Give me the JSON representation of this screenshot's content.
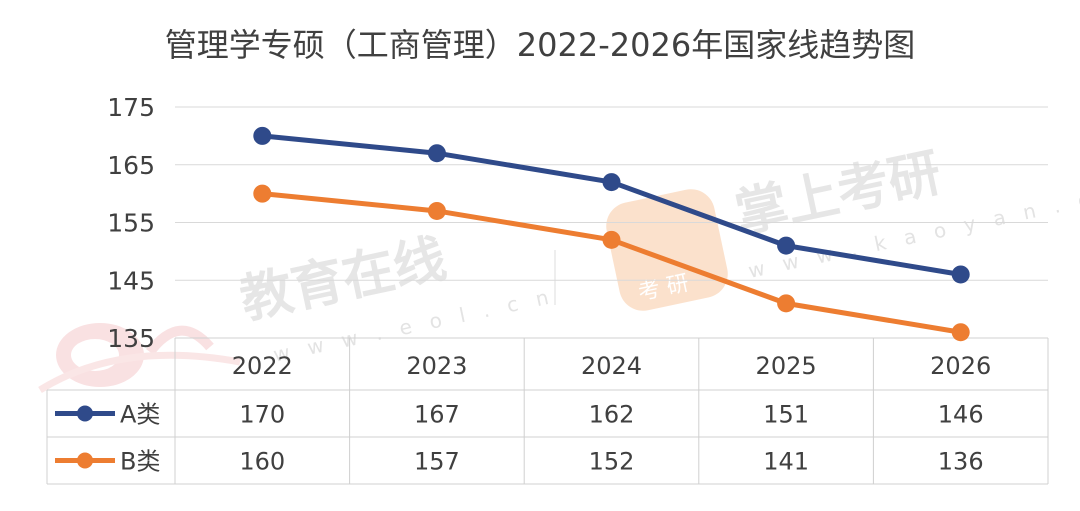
{
  "chart_data": {
    "type": "line",
    "title": "管理学专硕（工商管理）2022-2026年国家线趋势图",
    "categories": [
      "2022",
      "2023",
      "2024",
      "2025",
      "2026"
    ],
    "series": [
      {
        "name": "A类",
        "values": [
          170,
          167,
          162,
          151,
          146
        ],
        "color": "#2f4a8a"
      },
      {
        "name": "B类",
        "values": [
          160,
          157,
          152,
          141,
          136
        ],
        "color": "#ed7d31"
      }
    ],
    "ylim": [
      135,
      175
    ],
    "yticks": [
      175,
      165,
      155,
      145,
      135
    ],
    "grid": true,
    "legend": "data-table"
  },
  "watermarks": {
    "eol_text": "教育在线",
    "eol_url": "w w w . e o l . c n",
    "kaoyan_text": "掌上考研",
    "kaoyan_url": "w w w . k a o y a n . c n",
    "kaoyan_badge": "考 研",
    "eol_logo": "eol"
  }
}
